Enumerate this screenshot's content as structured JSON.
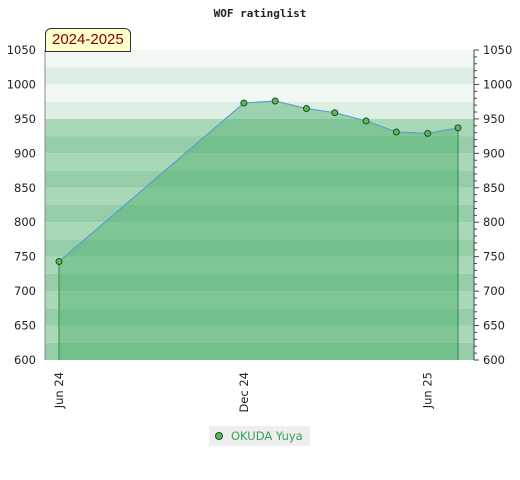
{
  "chart_data": {
    "type": "area",
    "title": "WOF ratinglist",
    "season_label": "2024-2025",
    "ylim": [
      600,
      1050
    ],
    "y_ticks": [
      600,
      650,
      700,
      750,
      800,
      850,
      900,
      950,
      1000,
      1050
    ],
    "x_ticks": [
      {
        "label": "Jun 24",
        "date": "2024-06-01"
      },
      {
        "label": "Dec 24",
        "date": "2024-12-01"
      },
      {
        "label": "Jun 25",
        "date": "2025-06-01"
      }
    ],
    "x_range": [
      "2024-06-01",
      "2025-07-15"
    ],
    "series": [
      {
        "name": "OKUDA Yuya",
        "color": "#5cb85c",
        "points": [
          {
            "date": "2024-06-01",
            "value": 743
          },
          {
            "date": "2024-12-01",
            "value": 973
          },
          {
            "date": "2025-01-01",
            "value": 976
          },
          {
            "date": "2025-02-01",
            "value": 965
          },
          {
            "date": "2025-03-01",
            "value": 959
          },
          {
            "date": "2025-04-01",
            "value": 947
          },
          {
            "date": "2025-05-01",
            "value": 931
          },
          {
            "date": "2025-06-01",
            "value": 929
          },
          {
            "date": "2025-07-01",
            "value": 937
          }
        ]
      }
    ],
    "grid": true,
    "legend_position": "bottom-center"
  }
}
